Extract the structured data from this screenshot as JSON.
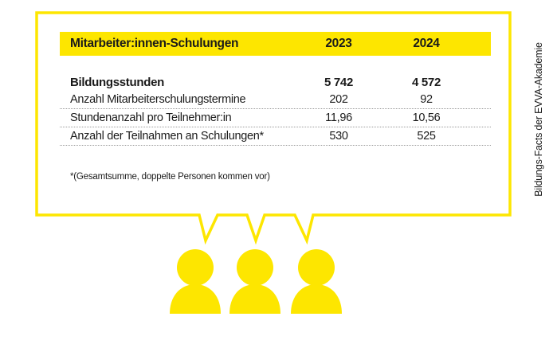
{
  "colors": {
    "accent_yellow": "#fde600",
    "text": "#1a1a1a",
    "divider": "#9a9a9a"
  },
  "side_label": "Bildungs-Facts der EVVA-Akademie",
  "table": {
    "header": {
      "label": "Mitarbeiter:innen-Schulungen",
      "col_a": "2023",
      "col_b": "2024"
    },
    "rows": [
      {
        "label": "Bildungsstunden",
        "a": "5 742",
        "b": "4 572",
        "bold": true
      },
      {
        "label": "Anzahl Mitarbeiterschulungstermine",
        "a": "202",
        "b": "92"
      },
      {
        "label": "Stundenanzahl pro Teilnehmer:in",
        "a": "11,96",
        "b": "10,56"
      },
      {
        "label": "Anzahl der Teilnahmen an Schulungen*",
        "a": "530",
        "b": "525"
      }
    ]
  },
  "footnote": "*(Gesamtsumme, doppelte Personen kommen vor)",
  "icons": [
    "speech-bubble-icon",
    "person-icon",
    "person-icon",
    "person-icon"
  ]
}
